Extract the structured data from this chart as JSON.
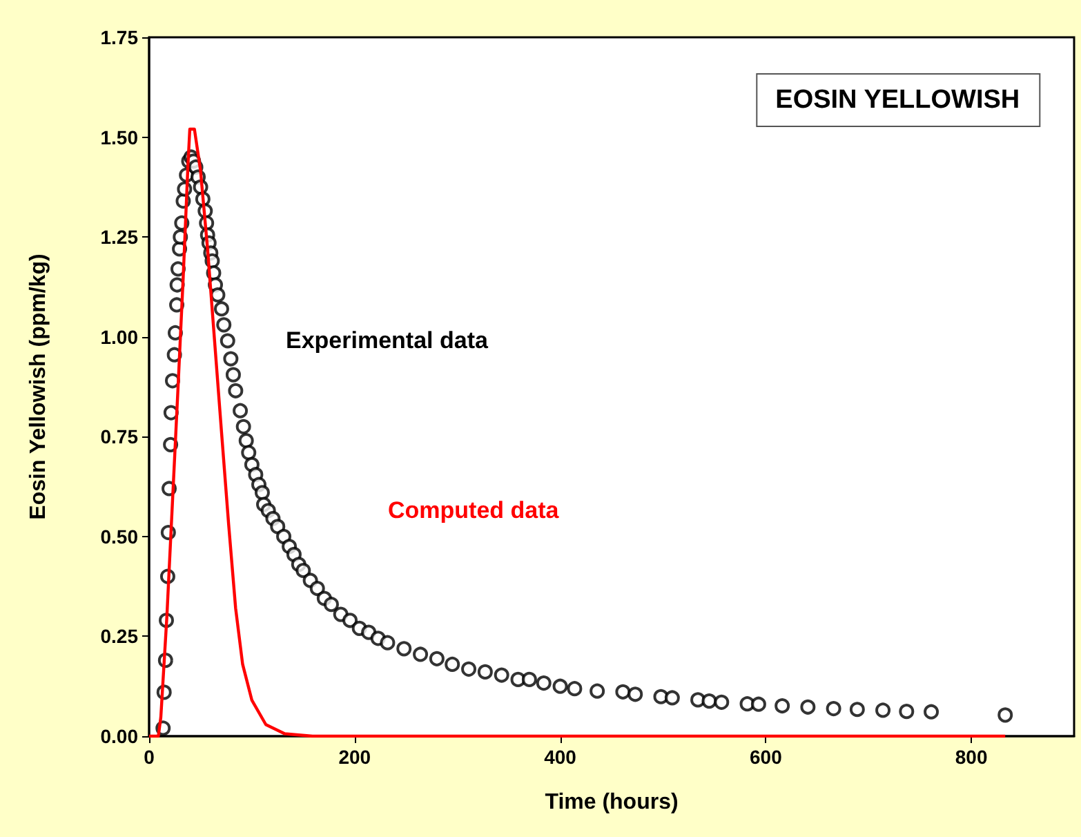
{
  "chart_data": {
    "type": "scatter",
    "title": "EOSIN YELLOWISH",
    "xlabel": "Time (hours)",
    "ylabel": "Eosin Yellowish (ppm/kg)",
    "xlim": [
      0,
      900
    ],
    "xticks": [
      0,
      200,
      400,
      600,
      800
    ],
    "ylim": [
      0,
      1.75
    ],
    "yticks": [
      {
        "value": 0,
        "label": "0.00"
      },
      {
        "value": 0.25,
        "label": "0.25"
      },
      {
        "value": 0.5,
        "label": "0.50"
      },
      {
        "value": 0.75,
        "label": "0.75"
      },
      {
        "value": 1,
        "label": "1.00"
      },
      {
        "value": 1.25,
        "label": "1.25"
      },
      {
        "value": 1.5,
        "label": "1.50"
      },
      {
        "value": 1.75,
        "label": "1.75"
      }
    ],
    "grid": false,
    "legend": false,
    "series": [
      {
        "name": "Experimental data",
        "marker": "circle",
        "color": "#000000",
        "x": [
          13.6,
          14.6,
          16,
          16.8,
          18.1,
          18.7,
          19.5,
          20.9,
          21.4,
          22.8,
          24.6,
          25.5,
          26.9,
          27.3,
          28.2,
          29.6,
          30.4,
          31.8,
          33.2,
          34.5,
          36.4,
          38.6,
          40.9,
          43.2,
          45.4,
          47.7,
          50.1,
          52.3,
          54.6,
          55.9,
          56.9,
          58.3,
          60,
          61.4,
          62.8,
          64.5,
          66.8,
          70.5,
          72.7,
          76.4,
          79.5,
          81.9,
          84.2,
          88.7,
          91.8,
          94.5,
          96.9,
          100,
          103.7,
          106.8,
          110.1,
          111.5,
          116,
          120.5,
          125.1,
          131,
          136.4,
          141,
          145.6,
          150,
          156.9,
          163.7,
          170.5,
          177.3,
          186.5,
          195.5,
          204.6,
          213.7,
          222.8,
          232,
          248,
          264,
          280,
          295,
          311,
          327,
          343,
          359,
          370,
          384,
          400,
          414,
          436,
          461,
          473,
          498,
          509,
          534,
          545,
          557,
          582,
          593,
          616,
          641,
          666,
          689,
          714,
          737,
          761,
          833
        ],
        "values": [
          0.02,
          0.11,
          0.19,
          0.29,
          0.4,
          0.51,
          0.62,
          0.73,
          0.81,
          0.89,
          0.955,
          1.01,
          1.08,
          1.13,
          1.17,
          1.22,
          1.25,
          1.285,
          1.34,
          1.37,
          1.405,
          1.44,
          1.45,
          1.44,
          1.425,
          1.4,
          1.375,
          1.345,
          1.315,
          1.285,
          1.255,
          1.235,
          1.21,
          1.19,
          1.16,
          1.13,
          1.105,
          1.07,
          1.03,
          0.99,
          0.945,
          0.905,
          0.865,
          0.815,
          0.775,
          0.74,
          0.71,
          0.68,
          0.655,
          0.63,
          0.61,
          0.58,
          0.565,
          0.545,
          0.525,
          0.5,
          0.475,
          0.455,
          0.43,
          0.415,
          0.39,
          0.37,
          0.345,
          0.33,
          0.305,
          0.29,
          0.27,
          0.26,
          0.245,
          0.234,
          0.219,
          0.205,
          0.194,
          0.18,
          0.168,
          0.161,
          0.153,
          0.142,
          0.142,
          0.133,
          0.125,
          0.119,
          0.113,
          0.111,
          0.105,
          0.099,
          0.096,
          0.091,
          0.088,
          0.085,
          0.081,
          0.08,
          0.076,
          0.073,
          0.069,
          0.067,
          0.065,
          0.062,
          0.061,
          0.053
        ]
      },
      {
        "name": "Computed data",
        "type": "line",
        "marker": "none",
        "color": "#ff0000",
        "x": [
          0,
          9,
          11.4,
          17.3,
          22.8,
          28.2,
          33.2,
          37.8,
          39.6,
          44.1,
          50,
          56.9,
          63.7,
          70.5,
          77.4,
          84.2,
          91,
          100,
          113.6,
          132,
          159,
          200,
          400,
          600,
          833
        ],
        "values": [
          0,
          0,
          0.047,
          0.3,
          0.59,
          0.876,
          1.15,
          1.43,
          1.52,
          1.52,
          1.417,
          1.22,
          0.99,
          0.76,
          0.53,
          0.32,
          0.18,
          0.09,
          0.029,
          0.006,
          0,
          0,
          0,
          0,
          0
        ]
      }
    ]
  }
}
